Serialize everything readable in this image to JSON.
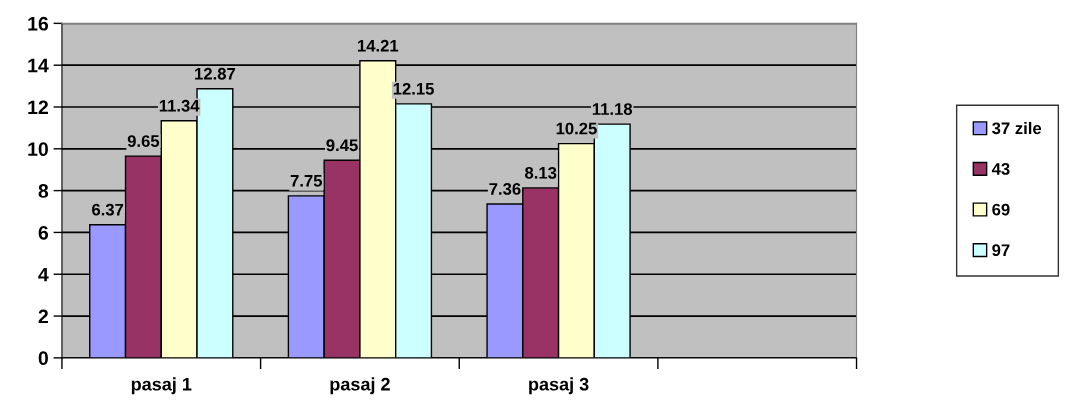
{
  "chart_data": {
    "type": "bar",
    "categories": [
      "pasaj 1",
      "pasaj 2",
      "pasaj 3",
      null
    ],
    "series": [
      {
        "name": "37 zile",
        "color": "#9999ff",
        "values": [
          6.37,
          7.75,
          7.36,
          null
        ]
      },
      {
        "name": "43",
        "color": "#993366",
        "values": [
          9.65,
          9.45,
          8.13,
          null
        ]
      },
      {
        "name": "69",
        "color": "#ffffcc",
        "values": [
          11.34,
          14.21,
          10.25,
          null
        ]
      },
      {
        "name": "97",
        "color": "#ccffff",
        "values": [
          12.87,
          12.15,
          11.18,
          null
        ]
      }
    ],
    "ylim": [
      0,
      16
    ],
    "yticks": [
      0,
      2,
      4,
      6,
      8,
      10,
      12,
      14,
      16
    ],
    "grid": "y",
    "legend": "right",
    "data_labels": true
  }
}
